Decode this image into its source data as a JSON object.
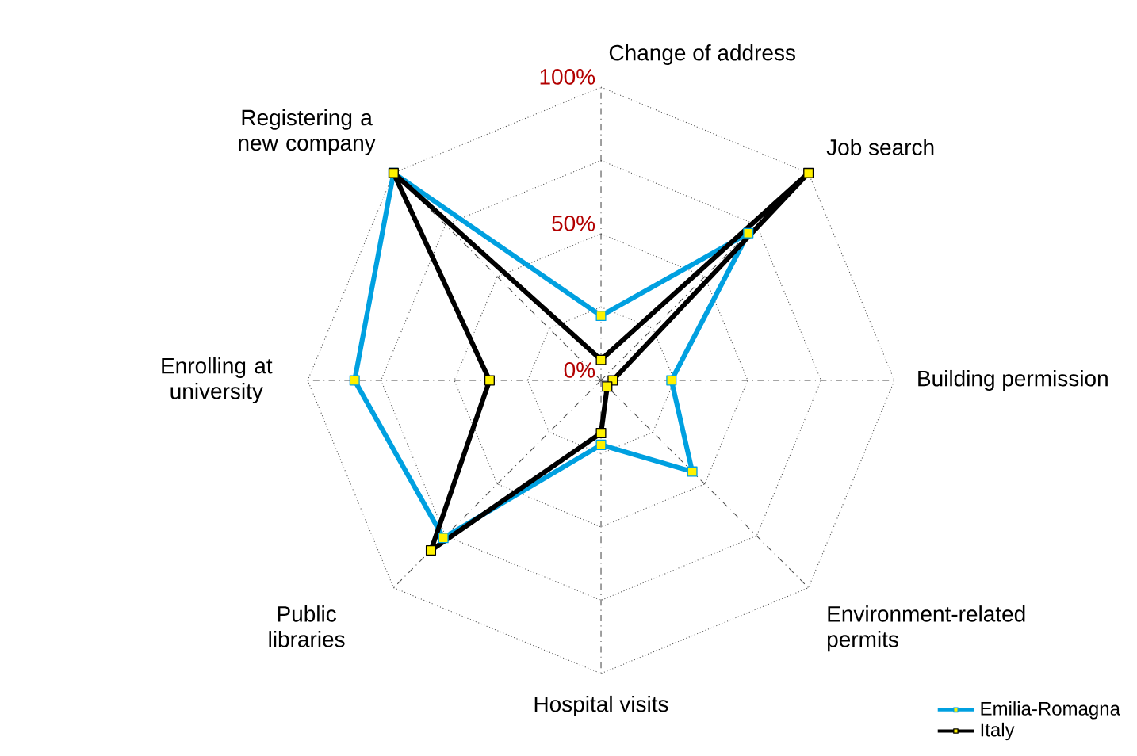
{
  "chart_data": {
    "type": "radar",
    "categories": [
      "Change of address",
      "Job search",
      "Building permission",
      "Environment-related permits",
      "Hospital visits",
      "Public libraries",
      "Enrolling at university",
      "Registering a new company"
    ],
    "series": [
      {
        "name": "Emilia-Romagna",
        "color": "#00a0e0",
        "values": [
          22,
          71,
          24,
          44,
          22,
          76,
          84,
          100
        ]
      },
      {
        "name": "Italy",
        "color": "#000000",
        "values": [
          7,
          100,
          4,
          3,
          18,
          82,
          38,
          100
        ]
      }
    ],
    "ylim": [
      0,
      100
    ],
    "yticks": [
      {
        "value": 0,
        "label": "0%"
      },
      {
        "value": 50,
        "label": "50%"
      },
      {
        "value": 100,
        "label": "100%"
      }
    ],
    "grid": true,
    "legend": "bottom right",
    "marker": "square",
    "line_style": "solid"
  }
}
